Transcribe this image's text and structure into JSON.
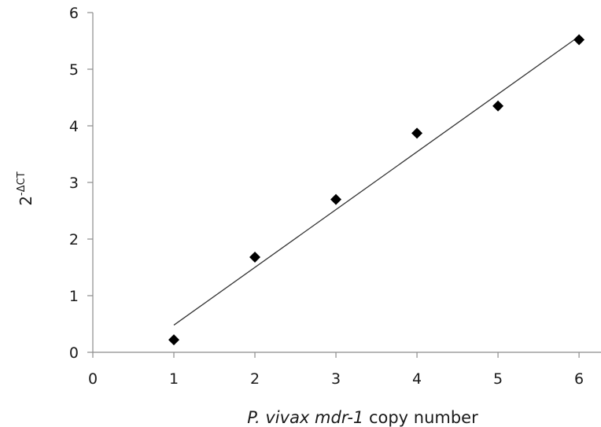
{
  "chart_data": {
    "type": "scatter",
    "title": "",
    "xlabel_parts": [
      {
        "text": "P. vivax",
        "italic": true
      },
      {
        "text": "  ",
        "italic": false
      },
      {
        "text": "mdr-1",
        "italic": true
      },
      {
        "text": " copy number",
        "italic": false
      }
    ],
    "ylabel_base": "2",
    "ylabel_sup": "-ΔCT",
    "xlim": [
      0,
      6.3
    ],
    "ylim": [
      0,
      6
    ],
    "x_ticks": [
      0,
      1,
      2,
      3,
      4,
      5,
      6
    ],
    "y_ticks": [
      0,
      1,
      2,
      3,
      4,
      5,
      6
    ],
    "grid": false,
    "legend": "none",
    "marker": "diamond",
    "marker_color": "#000000",
    "points": [
      {
        "x": 1,
        "y": 0.22
      },
      {
        "x": 2,
        "y": 1.68
      },
      {
        "x": 3,
        "y": 2.7
      },
      {
        "x": 4,
        "y": 3.87
      },
      {
        "x": 5,
        "y": 4.35
      },
      {
        "x": 6,
        "y": 5.52
      }
    ],
    "trendline": {
      "type": "linear",
      "x": [
        1,
        6
      ],
      "y": [
        0.48,
        5.58
      ],
      "color": "#333333"
    }
  }
}
